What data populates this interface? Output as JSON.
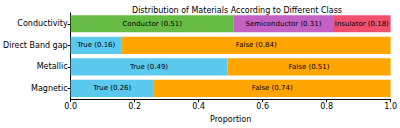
{
  "chart_data": {
    "type": "bar",
    "title": "Distribution of Materials According to Different Class",
    "x_label": "Proportion",
    "orientation": "horizontal",
    "stacked": true,
    "data_labels": true,
    "grid": false,
    "categories": [
      "Conductivity",
      "Direct Band gap",
      "Metallic",
      "Magnetic"
    ],
    "series": [
      {
        "name": "Conductor",
        "color": "#66bb44",
        "values": [
          0.51,
          null,
          null,
          null
        ],
        "value_labels": [
          "Conductor (0.51)",
          null,
          null,
          null
        ]
      },
      {
        "name": "Semiconductor",
        "color": "#c462c4",
        "values": [
          0.31,
          null,
          null,
          null
        ],
        "value_labels": [
          "Semiconductor (0.31)",
          null,
          null,
          null
        ]
      },
      {
        "name": "Insulator",
        "color": "#f0506e",
        "values": [
          0.18,
          null,
          null,
          null
        ],
        "value_labels": [
          "Insulator (0.18)",
          null,
          null,
          null
        ]
      },
      {
        "name": "True",
        "color": "#5bc8ee",
        "values": [
          null,
          0.16,
          0.49,
          0.26
        ],
        "value_labels": [
          null,
          "True (0.16)",
          "True (0.49)",
          "True (0.26)"
        ]
      },
      {
        "name": "False",
        "color": "#ffa500",
        "values": [
          null,
          0.84,
          0.51,
          0.74
        ],
        "value_labels": [
          null,
          "False (0.84)",
          "False (0.51)",
          "False (0.74)"
        ]
      }
    ],
    "xlim": [
      0,
      1
    ],
    "xticks": [
      {
        "value": 0,
        "label": "0.0"
      },
      0.2,
      0.4,
      0.6,
      0.8,
      {
        "value": 1,
        "label": "1.0"
      }
    ]
  }
}
